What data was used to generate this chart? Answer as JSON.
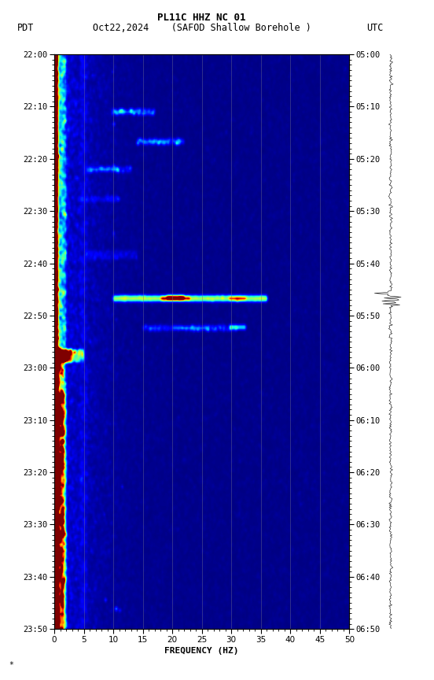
{
  "title_line1": "PL11C HHZ NC 01",
  "title_line2": "Oct22,2024    (SAFOD Shallow Borehole )",
  "label_left": "PDT",
  "label_right": "UTC",
  "xlabel": "FREQUENCY (HZ)",
  "freq_min": 0,
  "freq_max": 50,
  "ytick_labels_left": [
    "22:00",
    "22:10",
    "22:20",
    "22:30",
    "22:40",
    "22:50",
    "23:00",
    "23:10",
    "23:20",
    "23:30",
    "23:40",
    "23:50"
  ],
  "ytick_labels_right": [
    "05:00",
    "05:10",
    "05:20",
    "05:30",
    "05:40",
    "05:50",
    "06:00",
    "06:10",
    "06:20",
    "06:30",
    "06:40",
    "06:50"
  ],
  "background_color": "#ffffff",
  "colormap": "jet",
  "vline_positions": [
    5,
    10,
    15,
    20,
    25,
    30,
    35,
    40,
    45
  ],
  "annotation": "*",
  "n_time": 330,
  "n_freq": 250
}
